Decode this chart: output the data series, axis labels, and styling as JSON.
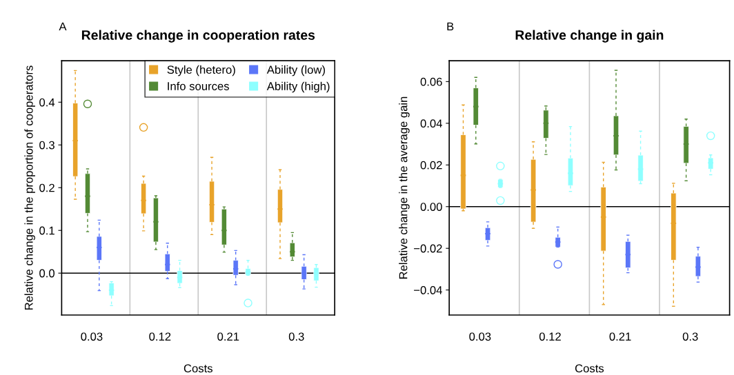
{
  "chart_data": [
    {
      "type": "box",
      "title": "Relative change in cooperation rates",
      "xlabel": "Costs",
      "ylabel": "Relative change in the proportion of cooperators",
      "annotations": [
        "A"
      ],
      "categories": [
        "0.03",
        "0.12",
        "0.21",
        "0.3"
      ],
      "ylim": [
        -0.098,
        0.497
      ],
      "yticks": [
        {
          "value": 0,
          "label": "0.0"
        },
        0.1,
        0.2,
        0.3,
        0.4
      ],
      "legend": "top right",
      "grid": false,
      "ref_lines": [
        {
          "axis": "y",
          "value": 0,
          "color": "#000000"
        }
      ],
      "series": [
        {
          "name": "Style (hetero)",
          "color": "#e8a32a",
          "boxes": [
            {
              "low": 0.173,
              "q1": 0.226,
              "median": 0.31,
              "q3": 0.398,
              "high": 0.474
            },
            {
              "low": 0.099,
              "q1": 0.139,
              "median": 0.17,
              "q3": 0.21,
              "high": 0.227,
              "outliers": [
                0.341
              ]
            },
            {
              "low": 0.09,
              "q1": 0.119,
              "median": 0.16,
              "q3": 0.215,
              "high": 0.271
            },
            {
              "low": 0.034,
              "q1": 0.118,
              "median": 0.15,
              "q3": 0.196,
              "high": 0.242
            }
          ]
        },
        {
          "name": "Info sources",
          "color": "#538a35",
          "boxes": [
            {
              "low": 0.097,
              "q1": 0.14,
              "median": 0.18,
              "q3": 0.233,
              "high": 0.244,
              "outliers": [
                0.396
              ]
            },
            {
              "low": 0.055,
              "q1": 0.073,
              "median": 0.12,
              "q3": 0.176,
              "high": 0.181
            },
            {
              "low": 0.049,
              "q1": 0.066,
              "median": 0.1,
              "q3": 0.15,
              "high": 0.155
            },
            {
              "low": 0.03,
              "q1": 0.038,
              "median": 0.05,
              "q3": 0.071,
              "high": 0.095
            }
          ]
        },
        {
          "name": "Ability (low)",
          "color": "#5b76f8",
          "boxes": [
            {
              "low": -0.041,
              "q1": 0.03,
              "median": 0.06,
              "q3": 0.086,
              "high": 0.124
            },
            {
              "low": -0.013,
              "q1": 0.004,
              "median": 0.02,
              "q3": 0.045,
              "high": 0.07
            },
            {
              "low": -0.027,
              "q1": -0.005,
              "median": 0.01,
              "q3": 0.03,
              "high": 0.053
            },
            {
              "low": -0.037,
              "q1": -0.015,
              "median": 0.0,
              "q3": 0.016,
              "high": 0.043
            }
          ]
        },
        {
          "name": "Ability (high)",
          "color": "#8effff",
          "boxes": [
            {
              "low": -0.076,
              "q1": -0.053,
              "median": -0.04,
              "q3": -0.023,
              "high": -0.02
            },
            {
              "low": -0.034,
              "q1": -0.024,
              "median": -0.01,
              "q3": 0.006,
              "high": 0.03
            },
            {
              "low": -0.005,
              "q1": -0.005,
              "median": 0.003,
              "q3": 0.011,
              "high": 0.03,
              "outliers": [
                -0.07
              ]
            },
            {
              "low": -0.033,
              "q1": -0.018,
              "median": 0.0,
              "q3": 0.013,
              "high": 0.02
            }
          ]
        }
      ]
    },
    {
      "type": "box",
      "title": "Relative change in gain",
      "xlabel": "Costs",
      "ylabel": "Relative change in the average gain",
      "annotations": [
        "B"
      ],
      "categories": [
        "0.03",
        "0.12",
        "0.21",
        "0.3"
      ],
      "ylim": [
        -0.052,
        0.07
      ],
      "yticks": [
        {
          "value": -0.04,
          "label": "−0.04"
        },
        {
          "value": -0.02,
          "label": "−0.02"
        },
        {
          "value": 0,
          "label": "0.00"
        },
        {
          "value": 0.02,
          "label": "0.02"
        },
        {
          "value": 0.04,
          "label": "0.04"
        },
        {
          "value": 0.06,
          "label": "0.06"
        }
      ],
      "grid": false,
      "ref_lines": [
        {
          "axis": "y",
          "value": 0,
          "color": "#000000"
        }
      ],
      "series": [
        {
          "color": "#e8a32a",
          "boxes": [
            {
              "low": -0.002,
              "q1": -0.0011,
              "median": 0.015,
              "q3": 0.0345,
              "high": 0.0488
            },
            {
              "low": -0.0104,
              "q1": -0.0074,
              "median": 0.008,
              "q3": 0.0227,
              "high": 0.0311
            },
            {
              "low": -0.047,
              "q1": -0.0213,
              "median": -0.005,
              "q3": 0.0094,
              "high": 0.0213
            },
            {
              "low": -0.0478,
              "q1": -0.0257,
              "median": -0.008,
              "q3": 0.0065,
              "high": 0.0112
            }
          ]
        },
        {
          "color": "#538a35",
          "boxes": [
            {
              "low": 0.0301,
              "q1": 0.0391,
              "median": 0.048,
              "q3": 0.057,
              "high": 0.062
            },
            {
              "low": 0.025,
              "q1": 0.0328,
              "median": 0.04,
              "q3": 0.0463,
              "high": 0.0483
            },
            {
              "low": 0.0176,
              "q1": 0.0248,
              "median": 0.034,
              "q3": 0.0436,
              "high": 0.0654
            },
            {
              "low": 0.0124,
              "q1": 0.0208,
              "median": 0.03,
              "q3": 0.0385,
              "high": 0.042
            }
          ]
        },
        {
          "color": "#5b76f8",
          "boxes": [
            {
              "low": -0.0189,
              "q1": -0.0162,
              "median": -0.013,
              "q3": -0.0101,
              "high": -0.0073
            },
            {
              "low": -0.0194,
              "q1": -0.0194,
              "median": -0.017,
              "q3": -0.0147,
              "high": -0.0098,
              "outliers": [
                -0.0277
              ]
            },
            {
              "low": -0.0317,
              "q1": -0.0294,
              "median": -0.023,
              "q3": -0.0167,
              "high": -0.0137
            },
            {
              "low": -0.0362,
              "q1": -0.0335,
              "median": -0.029,
              "q3": -0.0238,
              "high": -0.0195
            }
          ]
        },
        {
          "color": "#8effff",
          "boxes": [
            {
              "low": 0.0092,
              "q1": 0.0092,
              "median": 0.011,
              "q3": 0.0131,
              "high": 0.0131,
              "outliers": [
                0.0195,
                0.0029
              ]
            },
            {
              "low": 0.0073,
              "q1": 0.0101,
              "median": 0.016,
              "q3": 0.0233,
              "high": 0.0384
            },
            {
              "low": 0.011,
              "q1": 0.0122,
              "median": 0.018,
              "q3": 0.0247,
              "high": 0.0362
            },
            {
              "low": 0.0153,
              "q1": 0.018,
              "median": 0.021,
              "q3": 0.0234,
              "high": 0.0248,
              "outliers": [
                0.034
              ]
            }
          ]
        }
      ]
    }
  ]
}
